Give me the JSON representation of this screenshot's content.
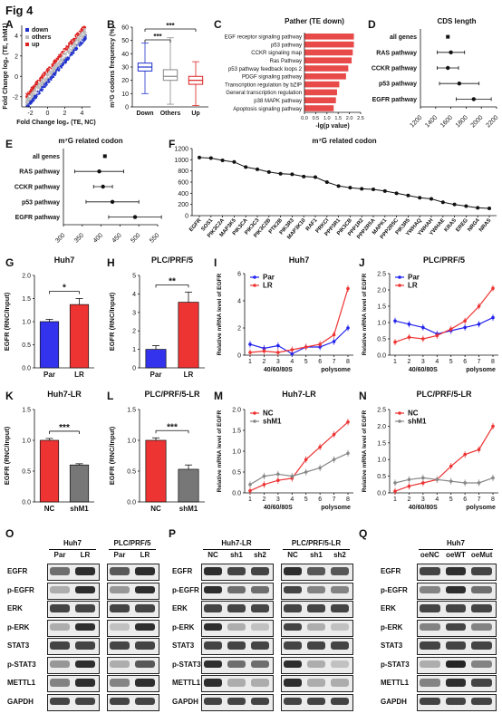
{
  "figure_title": "Fig 4",
  "panel_letters": [
    "A",
    "B",
    "C",
    "D",
    "E",
    "F",
    "G",
    "H",
    "I",
    "J",
    "K",
    "L",
    "M",
    "N",
    "O",
    "P",
    "Q"
  ],
  "chart_data": [
    {
      "panel": "A",
      "type": "scatter",
      "xlabel": "Fold Change log₂ (TE, NC)",
      "ylabel": "Fold Change log₂ (TE, shM1)",
      "xticks": [
        "-2",
        "0",
        "2",
        "4"
      ],
      "yticks": [
        "4",
        "2",
        "0",
        "-2"
      ],
      "legend": [
        "down",
        "others",
        "up"
      ],
      "colors": {
        "down": "#2233cc",
        "others": "#bbbbbb",
        "up": "#dd2222"
      }
    },
    {
      "panel": "B",
      "type": "box",
      "ylabel": "m⁷G codons frequency (%)",
      "categories": [
        "Down",
        "Others",
        "Up"
      ],
      "yticks": [
        "0",
        "10",
        "20",
        "30",
        "40",
        "50",
        "60"
      ],
      "ylim": [
        0,
        60
      ],
      "boxes": [
        {
          "name": "Down",
          "min": 10,
          "q1": 27,
          "median": 30,
          "q3": 33,
          "max": 48
        },
        {
          "name": "Others",
          "min": 2,
          "q1": 20,
          "median": 23,
          "q3": 28,
          "max": 52
        },
        {
          "name": "Up",
          "min": 1,
          "q1": 17,
          "median": 20,
          "q3": 23,
          "max": 34
        }
      ],
      "significance": [
        "***",
        "***"
      ],
      "colors": [
        "#2233cc",
        "#888888",
        "#dd2222"
      ]
    },
    {
      "panel": "C",
      "type": "bar",
      "orientation": "horizontal",
      "title": "Pather (TE down)",
      "xlabel": "-lg(p value)",
      "xlim": [
        0,
        2.5
      ],
      "xticks": [
        "0.0",
        "0.5",
        "1.0",
        "1.5",
        "2.0",
        "2.5"
      ],
      "categories": [
        "EGF receptor signaling pathway",
        "p53 pathway",
        "CCKR signaling map",
        "Ras Pathway",
        "p53 pathway feedback loops 2",
        "PDGF signaling pathway",
        "Transcription regulation by bZIP",
        "General transcription regulation",
        "p38 MAPK pathway",
        "Apoptosis signaling pathway"
      ],
      "values": [
        2.2,
        2.2,
        2.15,
        2.1,
        1.95,
        1.85,
        1.55,
        1.45,
        1.4,
        1.3
      ],
      "color": "#e84a4a"
    },
    {
      "panel": "D",
      "type": "scatter",
      "title": "CDS length",
      "categories": [
        "all genes",
        "RAS pathway",
        "CCKR pathway",
        "p53 pathway",
        "EGFR pathway"
      ],
      "values": [
        1560,
        1600,
        1560,
        1710,
        1900
      ],
      "errors": [
        0,
        180,
        140,
        260,
        230
      ],
      "xlim": [
        1200,
        2200
      ],
      "xticks": [
        "1200",
        "1400",
        "1600",
        "1800",
        "2000",
        "2200"
      ]
    },
    {
      "panel": "E",
      "type": "scatter",
      "title": "m⁷G related codon",
      "categories": [
        "all genes",
        "RAS pathway",
        "CCKR pathway",
        "p53 pathway",
        "EGFR pathway"
      ],
      "values": [
        410,
        395,
        405,
        430,
        490
      ],
      "errors": [
        0,
        65,
        25,
        70,
        70
      ],
      "xlim": [
        300,
        550
      ],
      "xticks": [
        "300",
        "350",
        "400",
        "450",
        "500",
        "550"
      ]
    },
    {
      "panel": "F",
      "type": "line",
      "title": "m⁷G related codon",
      "categories": [
        "EGFR",
        "SOS1",
        "PIK3C2A",
        "MAP3K5",
        "PIK3CA",
        "PIK3C3",
        "PIK3C2B",
        "PTK2B",
        "PIK3R3",
        "MAP3K10",
        "RAF1",
        "PRKCI",
        "PPP3R1",
        "PIK3CB",
        "PPP1R2",
        "PPP2R5A",
        "MAPK1",
        "PPP2R5C",
        "PIK3R5",
        "YWHAQ",
        "YWHAH",
        "YWHAE",
        "KRAS",
        "EREG",
        "NRG4",
        "NRAS"
      ],
      "values": [
        1040,
        1030,
        990,
        960,
        870,
        830,
        780,
        750,
        740,
        700,
        690,
        600,
        530,
        500,
        480,
        470,
        440,
        400,
        360,
        320,
        300,
        240,
        200,
        170,
        140,
        130
      ],
      "ylim": [
        0,
        1200
      ],
      "yticks": [
        "0",
        "200",
        "400",
        "600",
        "800",
        "1000",
        "1200"
      ]
    },
    {
      "panel": "G",
      "type": "bar",
      "title": "Huh7",
      "ylabel": "EGFR (RNC/Input)",
      "categories": [
        "Par",
        "LR"
      ],
      "values": [
        1.0,
        1.37
      ],
      "errors": [
        0.05,
        0.13
      ],
      "ylim": [
        0,
        2.0
      ],
      "yticks": [
        "0.0",
        "0.5",
        "1.0",
        "1.5",
        "2.0"
      ],
      "significance": "*",
      "colors": [
        "#3333ee",
        "#ee3333"
      ]
    },
    {
      "panel": "H",
      "type": "bar",
      "title": "PLC/PRF/5",
      "ylabel": "EGFR (RNC/Input)",
      "categories": [
        "Par",
        "LR"
      ],
      "values": [
        1.0,
        3.55
      ],
      "errors": [
        0.2,
        0.55
      ],
      "ylim": [
        0,
        5
      ],
      "yticks": [
        "0",
        "1",
        "2",
        "3",
        "4",
        "5"
      ],
      "significance": "**",
      "colors": [
        "#3333ee",
        "#ee3333"
      ]
    },
    {
      "panel": "I",
      "type": "line",
      "title": "Huh7",
      "ylabel": "Relative mRNA level of EGFR",
      "x": [
        1,
        2,
        3,
        4,
        5,
        6,
        7,
        8
      ],
      "xgroups": [
        "40/60/80S",
        "polysome"
      ],
      "ylim": [
        0,
        6
      ],
      "yticks": [
        "0",
        "2",
        "4",
        "6"
      ],
      "series": [
        {
          "name": "Par",
          "values": [
            0.8,
            0.5,
            0.7,
            0.1,
            0.6,
            0.6,
            1.0,
            2.0
          ],
          "color": "#2222ee"
        },
        {
          "name": "LR",
          "values": [
            0.2,
            0.3,
            0.2,
            0.4,
            0.6,
            0.8,
            1.5,
            4.9
          ],
          "color": "#ee3333"
        }
      ]
    },
    {
      "panel": "J",
      "type": "line",
      "title": "PLC/PRF/5",
      "ylabel": "Relative mRNA level of EGFR",
      "x": [
        1,
        2,
        3,
        4,
        5,
        6,
        7,
        8
      ],
      "xgroups": [
        "40/60/80S",
        "polysome"
      ],
      "ylim": [
        0,
        2.5
      ],
      "yticks": [
        "0.0",
        "0.5",
        "1.0",
        "1.5",
        "2.0",
        "2.5"
      ],
      "series": [
        {
          "name": "Par",
          "values": [
            1.05,
            0.95,
            0.85,
            0.65,
            0.75,
            0.85,
            0.95,
            1.15
          ],
          "color": "#2222ee"
        },
        {
          "name": "LR",
          "values": [
            0.4,
            0.55,
            0.5,
            0.6,
            0.8,
            1.05,
            1.5,
            2.05
          ],
          "color": "#ee3333"
        }
      ]
    },
    {
      "panel": "K",
      "type": "bar",
      "title": "Huh7-LR",
      "ylabel": "EGFR (RNC/Input)",
      "categories": [
        "NC",
        "shM1"
      ],
      "values": [
        1.0,
        0.6
      ],
      "errors": [
        0.03,
        0.02
      ],
      "ylim": [
        0,
        1.5
      ],
      "yticks": [
        "0.0",
        "0.5",
        "1.0",
        "1.5"
      ],
      "significance": "***",
      "colors": [
        "#ee3333",
        "#777777"
      ]
    },
    {
      "panel": "L",
      "type": "bar",
      "title": "PLC/PRF/5-LR",
      "ylabel": "EGFR (RNC/Input)",
      "categories": [
        "NC",
        "shM1"
      ],
      "values": [
        1.0,
        0.53
      ],
      "errors": [
        0.04,
        0.07
      ],
      "ylim": [
        0,
        1.5
      ],
      "yticks": [
        "0.0",
        "0.5",
        "1.0",
        "1.5"
      ],
      "significance": "***",
      "colors": [
        "#ee3333",
        "#777777"
      ]
    },
    {
      "panel": "M",
      "type": "line",
      "title": "Huh7-LR",
      "ylabel": "Relative mRNA level of EGFR",
      "x": [
        1,
        2,
        3,
        4,
        5,
        6,
        7,
        8
      ],
      "xgroups": [
        "40/60/80S",
        "polysome"
      ],
      "ylim": [
        0,
        2.0
      ],
      "yticks": [
        "0.0",
        "0.5",
        "1.0",
        "1.5",
        "2.0"
      ],
      "series": [
        {
          "name": "NC",
          "values": [
            0.05,
            0.2,
            0.3,
            0.35,
            0.8,
            1.1,
            1.4,
            1.7
          ],
          "color": "#ee3333"
        },
        {
          "name": "shM1",
          "values": [
            0.2,
            0.4,
            0.45,
            0.4,
            0.5,
            0.6,
            0.8,
            0.95
          ],
          "color": "#888888"
        }
      ]
    },
    {
      "panel": "N",
      "type": "line",
      "title": "PLC/PRF/5-LR",
      "ylabel": "Relative mRNA level of EGFR",
      "x": [
        1,
        2,
        3,
        4,
        5,
        6,
        7,
        8
      ],
      "xgroups": [
        "40/60/80S",
        "polysome"
      ],
      "ylim": [
        0,
        2.5
      ],
      "yticks": [
        "0.0",
        "0.5",
        "1.0",
        "1.5",
        "2.0",
        "2.5"
      ],
      "series": [
        {
          "name": "NC",
          "values": [
            0.05,
            0.2,
            0.3,
            0.4,
            0.8,
            1.15,
            1.3,
            2.0
          ],
          "color": "#ee3333"
        },
        {
          "name": "shM1",
          "values": [
            0.3,
            0.4,
            0.45,
            0.4,
            0.35,
            0.3,
            0.3,
            0.45
          ],
          "color": "#888888"
        }
      ]
    }
  ],
  "blots": {
    "rows": [
      "EGFR",
      "p-EGFR",
      "ERK",
      "p-ERK",
      "STAT3",
      "p-STAT3",
      "METTL1",
      "GAPDH"
    ],
    "O": {
      "letter": "O",
      "groups": [
        {
          "title": "Huh7",
          "lanes": [
            "Par",
            "LR"
          ]
        },
        {
          "title": "PLC/PRF/5",
          "lanes": [
            "Par",
            "LR"
          ]
        }
      ],
      "intensity": [
        [
          0.6,
          0.9,
          0.7,
          0.9
        ],
        [
          0.3,
          0.9,
          0.4,
          0.9
        ],
        [
          0.8,
          0.8,
          0.8,
          0.8
        ],
        [
          0.3,
          0.9,
          0.2,
          0.9
        ],
        [
          0.8,
          0.8,
          0.8,
          0.8
        ],
        [
          0.4,
          0.9,
          0.3,
          0.7
        ],
        [
          0.5,
          0.9,
          0.5,
          0.9
        ],
        [
          0.8,
          0.8,
          0.8,
          0.8
        ]
      ]
    },
    "P": {
      "letter": "P",
      "groups": [
        {
          "title": "Huh7-LR",
          "lanes": [
            "NC",
            "sh1",
            "sh2"
          ]
        },
        {
          "title": "PLC/PRF/5-LR",
          "lanes": [
            "NC",
            "sh1",
            "sh2"
          ]
        }
      ],
      "intensity": [
        [
          0.9,
          0.8,
          0.8,
          0.9,
          0.7,
          0.7
        ],
        [
          0.9,
          0.6,
          0.6,
          0.8,
          0.5,
          0.5
        ],
        [
          0.8,
          0.8,
          0.8,
          0.8,
          0.8,
          0.8
        ],
        [
          0.9,
          0.3,
          0.2,
          0.8,
          0.3,
          0.2
        ],
        [
          0.8,
          0.8,
          0.8,
          0.8,
          0.8,
          0.8
        ],
        [
          0.9,
          0.6,
          0.6,
          0.9,
          0.3,
          0.2
        ],
        [
          0.9,
          0.3,
          0.3,
          0.9,
          0.3,
          0.3
        ],
        [
          0.8,
          0.8,
          0.8,
          0.8,
          0.8,
          0.8
        ]
      ]
    },
    "Q": {
      "letter": "Q",
      "groups": [
        {
          "title": "Huh7",
          "lanes": [
            "oeNC",
            "oeWT",
            "oeMut"
          ]
        }
      ],
      "intensity": [
        [
          0.8,
          0.9,
          0.8
        ],
        [
          0.5,
          0.9,
          0.6
        ],
        [
          0.8,
          0.8,
          0.8
        ],
        [
          0.5,
          0.8,
          0.5
        ],
        [
          0.8,
          0.8,
          0.8
        ],
        [
          0.3,
          0.95,
          0.5
        ],
        [
          0.5,
          0.9,
          0.8
        ],
        [
          0.8,
          0.8,
          0.8
        ]
      ]
    }
  }
}
